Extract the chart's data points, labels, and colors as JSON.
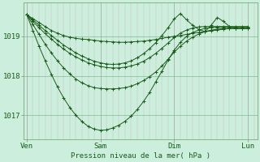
{
  "bg_color": "#cceedd",
  "plot_bg_color": "#cceedd",
  "line_color": "#1a5c1a",
  "xlabel": "Pression niveau de la mer( hPa )",
  "x_ticks": [
    0,
    48,
    96,
    144
  ],
  "x_tick_labels": [
    "Ven",
    "Sam",
    "Dim",
    "Lun"
  ],
  "y_ticks": [
    1017,
    1018,
    1019
  ],
  "ylim": [
    1016.4,
    1019.85
  ],
  "xlim": [
    -2,
    150
  ],
  "minor_x_step": 4,
  "series_x": [
    [
      0,
      4,
      8,
      12,
      16,
      20,
      24,
      28,
      32,
      36,
      40,
      44,
      48,
      52,
      56,
      60,
      64,
      68,
      72,
      76,
      80,
      84,
      88,
      92,
      96,
      100,
      104,
      108,
      112,
      116,
      120,
      124,
      128,
      132,
      136,
      140,
      144
    ],
    [
      0,
      4,
      8,
      12,
      16,
      20,
      24,
      28,
      32,
      36,
      40,
      44,
      48,
      52,
      56,
      60,
      64,
      68,
      72,
      76,
      80,
      84,
      88,
      92,
      96,
      100,
      104,
      108,
      112,
      116,
      120,
      124,
      128,
      132,
      136,
      140,
      144
    ],
    [
      0,
      4,
      8,
      12,
      16,
      20,
      24,
      28,
      32,
      36,
      40,
      44,
      48,
      52,
      56,
      60,
      64,
      68,
      72,
      76,
      80,
      84,
      88,
      92,
      96,
      100,
      104,
      108,
      112,
      116,
      120,
      124,
      128,
      132,
      136,
      140,
      144
    ],
    [
      0,
      4,
      8,
      12,
      16,
      20,
      24,
      28,
      32,
      36,
      40,
      44,
      48,
      52,
      56,
      60,
      64,
      68,
      72,
      76,
      80,
      84,
      88,
      92,
      96,
      100,
      104,
      108,
      112,
      116,
      120,
      124,
      128,
      132,
      136,
      140,
      144
    ],
    [
      0,
      4,
      8,
      12,
      16,
      20,
      24,
      28,
      32,
      36,
      40,
      44,
      48,
      52,
      56,
      60,
      64,
      68,
      72,
      76,
      80,
      84,
      88,
      92,
      96,
      100,
      104,
      108,
      112,
      116,
      120,
      124,
      128,
      132,
      136,
      140,
      144
    ]
  ],
  "series_y": [
    [
      1019.55,
      1019.45,
      1019.35,
      1019.25,
      1019.15,
      1019.08,
      1019.02,
      1018.98,
      1018.95,
      1018.93,
      1018.92,
      1018.9,
      1018.88,
      1018.87,
      1018.86,
      1018.85,
      1018.85,
      1018.86,
      1018.87,
      1018.88,
      1018.9,
      1018.92,
      1018.95,
      1018.98,
      1019.0,
      1019.02,
      1019.05,
      1019.08,
      1019.1,
      1019.12,
      1019.14,
      1019.16,
      1019.18,
      1019.2,
      1019.2,
      1019.2,
      1019.2
    ],
    [
      1019.55,
      1019.3,
      1019.05,
      1018.8,
      1018.58,
      1018.38,
      1018.2,
      1018.05,
      1017.92,
      1017.82,
      1017.75,
      1017.7,
      1017.68,
      1017.67,
      1017.67,
      1017.68,
      1017.7,
      1017.74,
      1017.8,
      1017.88,
      1017.98,
      1018.1,
      1018.25,
      1018.42,
      1018.6,
      1018.75,
      1018.88,
      1018.98,
      1019.06,
      1019.12,
      1019.16,
      1019.18,
      1019.2,
      1019.2,
      1019.2,
      1019.2,
      1019.2
    ],
    [
      1019.55,
      1019.15,
      1018.75,
      1018.38,
      1018.04,
      1017.72,
      1017.44,
      1017.2,
      1017.0,
      1016.84,
      1016.72,
      1016.65,
      1016.62,
      1016.63,
      1016.68,
      1016.75,
      1016.85,
      1016.98,
      1017.15,
      1017.35,
      1017.58,
      1017.85,
      1018.12,
      1018.4,
      1018.65,
      1018.85,
      1019.0,
      1019.1,
      1019.16,
      1019.2,
      1019.22,
      1019.23,
      1019.23,
      1019.23,
      1019.23,
      1019.23,
      1019.23
    ],
    [
      1019.55,
      1019.38,
      1019.22,
      1019.07,
      1018.93,
      1018.8,
      1018.68,
      1018.57,
      1018.48,
      1018.4,
      1018.33,
      1018.28,
      1018.24,
      1018.21,
      1018.2,
      1018.2,
      1018.22,
      1018.25,
      1018.3,
      1018.37,
      1018.46,
      1018.57,
      1018.7,
      1018.83,
      1018.97,
      1019.08,
      1019.16,
      1019.21,
      1019.24,
      1019.25,
      1019.25,
      1019.25,
      1019.25,
      1019.25,
      1019.25,
      1019.25,
      1019.25
    ],
    [
      1019.55,
      1019.42,
      1019.28,
      1019.15,
      1019.02,
      1018.9,
      1018.78,
      1018.68,
      1018.58,
      1018.5,
      1018.43,
      1018.37,
      1018.33,
      1018.3,
      1018.29,
      1018.3,
      1018.33,
      1018.38,
      1018.46,
      1018.56,
      1018.69,
      1018.84,
      1019.02,
      1019.22,
      1019.44,
      1019.58,
      1019.42,
      1019.28,
      1019.18,
      1019.12,
      1019.28,
      1019.48,
      1019.38,
      1019.25,
      1019.2,
      1019.2,
      1019.2
    ]
  ]
}
